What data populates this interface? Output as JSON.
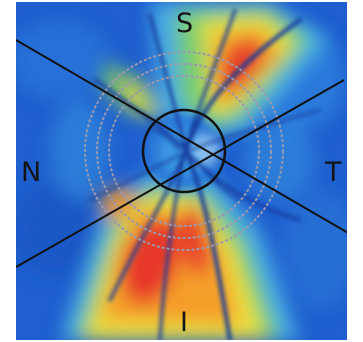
{
  "image": {
    "kind": "false-color retinal nerve fiber layer thickness map of the optic disc",
    "orientation_labels": {
      "superior": "S",
      "nasal": "N",
      "temporal": "T",
      "inferior": "I"
    },
    "colors": {
      "background_blue": "#1f5fcf",
      "deep_blue": "#123a9e",
      "cyan": "#4fb8e6",
      "green": "#7fd35a",
      "yellow": "#f3e23a",
      "orange": "#f49a2a",
      "red": "#e6322a",
      "circle_gray": "#9a9aae",
      "line_black": "#111111"
    }
  }
}
